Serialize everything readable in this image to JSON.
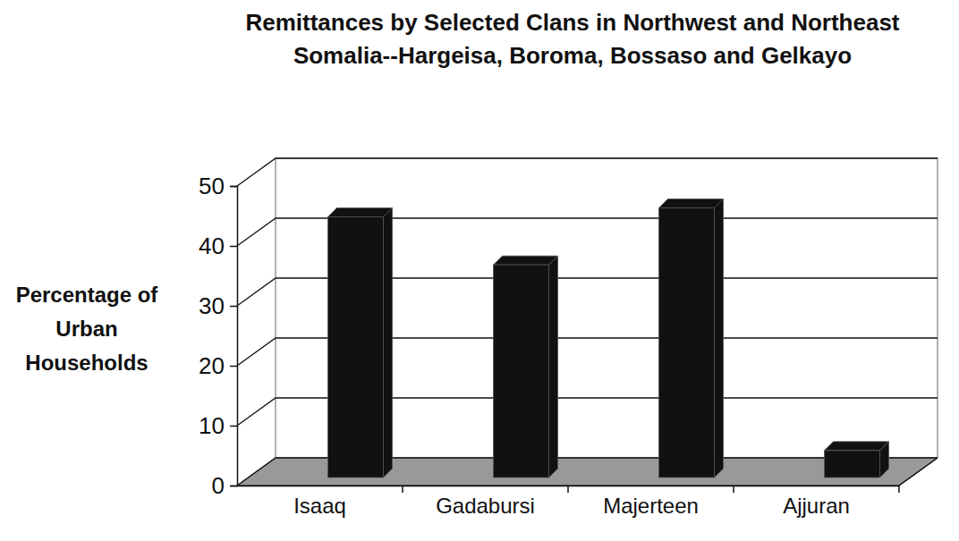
{
  "chart_data": {
    "type": "bar",
    "title": "Remittances by Selected Clans in Northwest and Northeast Somalia--Hargeisa, Boroma, Bossaso and Gelkayo",
    "y_label": "Percentage of Urban Households",
    "categories": [
      "Isaaq",
      "Gadabursi",
      "Majerteen",
      "Ajjuran"
    ],
    "values": [
      43.5,
      35.5,
      45,
      4.5
    ],
    "color": "#111111",
    "ylim": [
      0,
      50
    ],
    "yticks": [
      0,
      10,
      20,
      30,
      40,
      50
    ],
    "grid": true
  }
}
